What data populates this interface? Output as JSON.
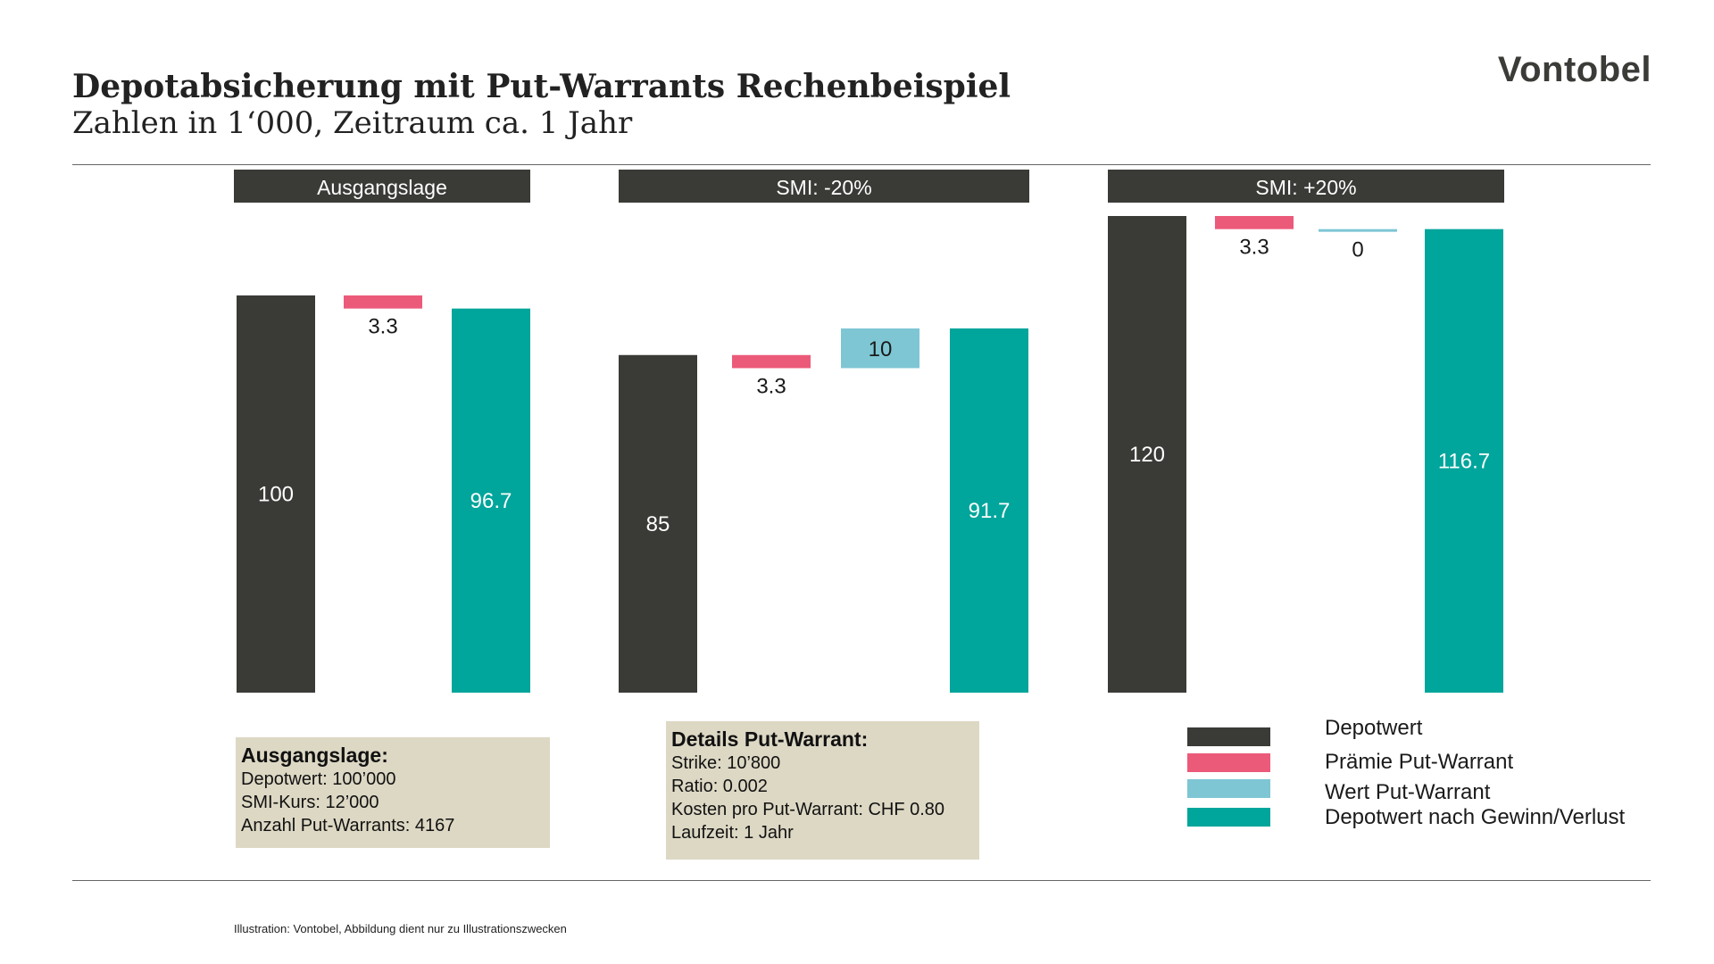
{
  "header": {
    "title": "Depotabsicherung mit Put-Warrants Rechenbeispiel",
    "subtitle": "Zahlen in 1‘000, Zeitraum ca. 1 Jahr",
    "logo": "Vontobel"
  },
  "colors": {
    "depotwert": "#3a3a37",
    "praemie": "#ec5a7a",
    "wert_put": "#7ec6d4",
    "depotwert_nach": "#00a59b",
    "header_bar": "#3a3a37",
    "info_box": "#ddd8c4"
  },
  "chart_data": [
    {
      "type": "bar",
      "title": "Ausgangslage",
      "categories": [
        "Depotwert",
        "Prämie Put-Warrant",
        "Depotwert nach Gewinn/Verlust"
      ],
      "values": [
        100,
        -3.3,
        96.7
      ],
      "labels": [
        "100",
        "3.3",
        "96.7"
      ]
    },
    {
      "type": "bar",
      "title": "SMI: -20%",
      "categories": [
        "Depotwert",
        "Prämie Put-Warrant",
        "Wert Put-Warrant",
        "Depotwert nach Gewinn/Verlust"
      ],
      "values": [
        85,
        -3.3,
        10,
        91.7
      ],
      "labels": [
        "85",
        "3.3",
        "10",
        "91.7"
      ]
    },
    {
      "type": "bar",
      "title": "SMI: +20%",
      "categories": [
        "Depotwert",
        "Prämie Put-Warrant",
        "Wert Put-Warrant",
        "Depotwert nach Gewinn/Verlust"
      ],
      "values": [
        120,
        -3.3,
        0,
        116.7
      ],
      "labels": [
        "120",
        "3.3",
        "0",
        "116.7"
      ]
    }
  ],
  "info_boxes": {
    "ausgangslage": {
      "heading": "Ausgangslage:",
      "lines": [
        "Depotwert: 100’000",
        "SMI-Kurs: 12’000",
        "Anzahl Put-Warrants: 4167"
      ]
    },
    "details": {
      "heading": "Details Put-Warrant:",
      "lines": [
        "Strike: 10’800",
        "Ratio: 0.002",
        "Kosten pro Put-Warrant: CHF 0.80",
        "Laufzeit: 1 Jahr"
      ]
    }
  },
  "legend": [
    {
      "label": "Depotwert",
      "color": "#3a3a37"
    },
    {
      "label": "Prämie Put-Warrant",
      "color": "#ec5a7a"
    },
    {
      "label": "Wert Put-Warrant",
      "color": "#7ec6d4"
    },
    {
      "label": "Depotwert nach Gewinn/Verlust",
      "color": "#00a59b"
    }
  ],
  "footer": {
    "source": "Illustration: Vontobel, Abbildung dient nur zu Illustrationszwecken"
  }
}
